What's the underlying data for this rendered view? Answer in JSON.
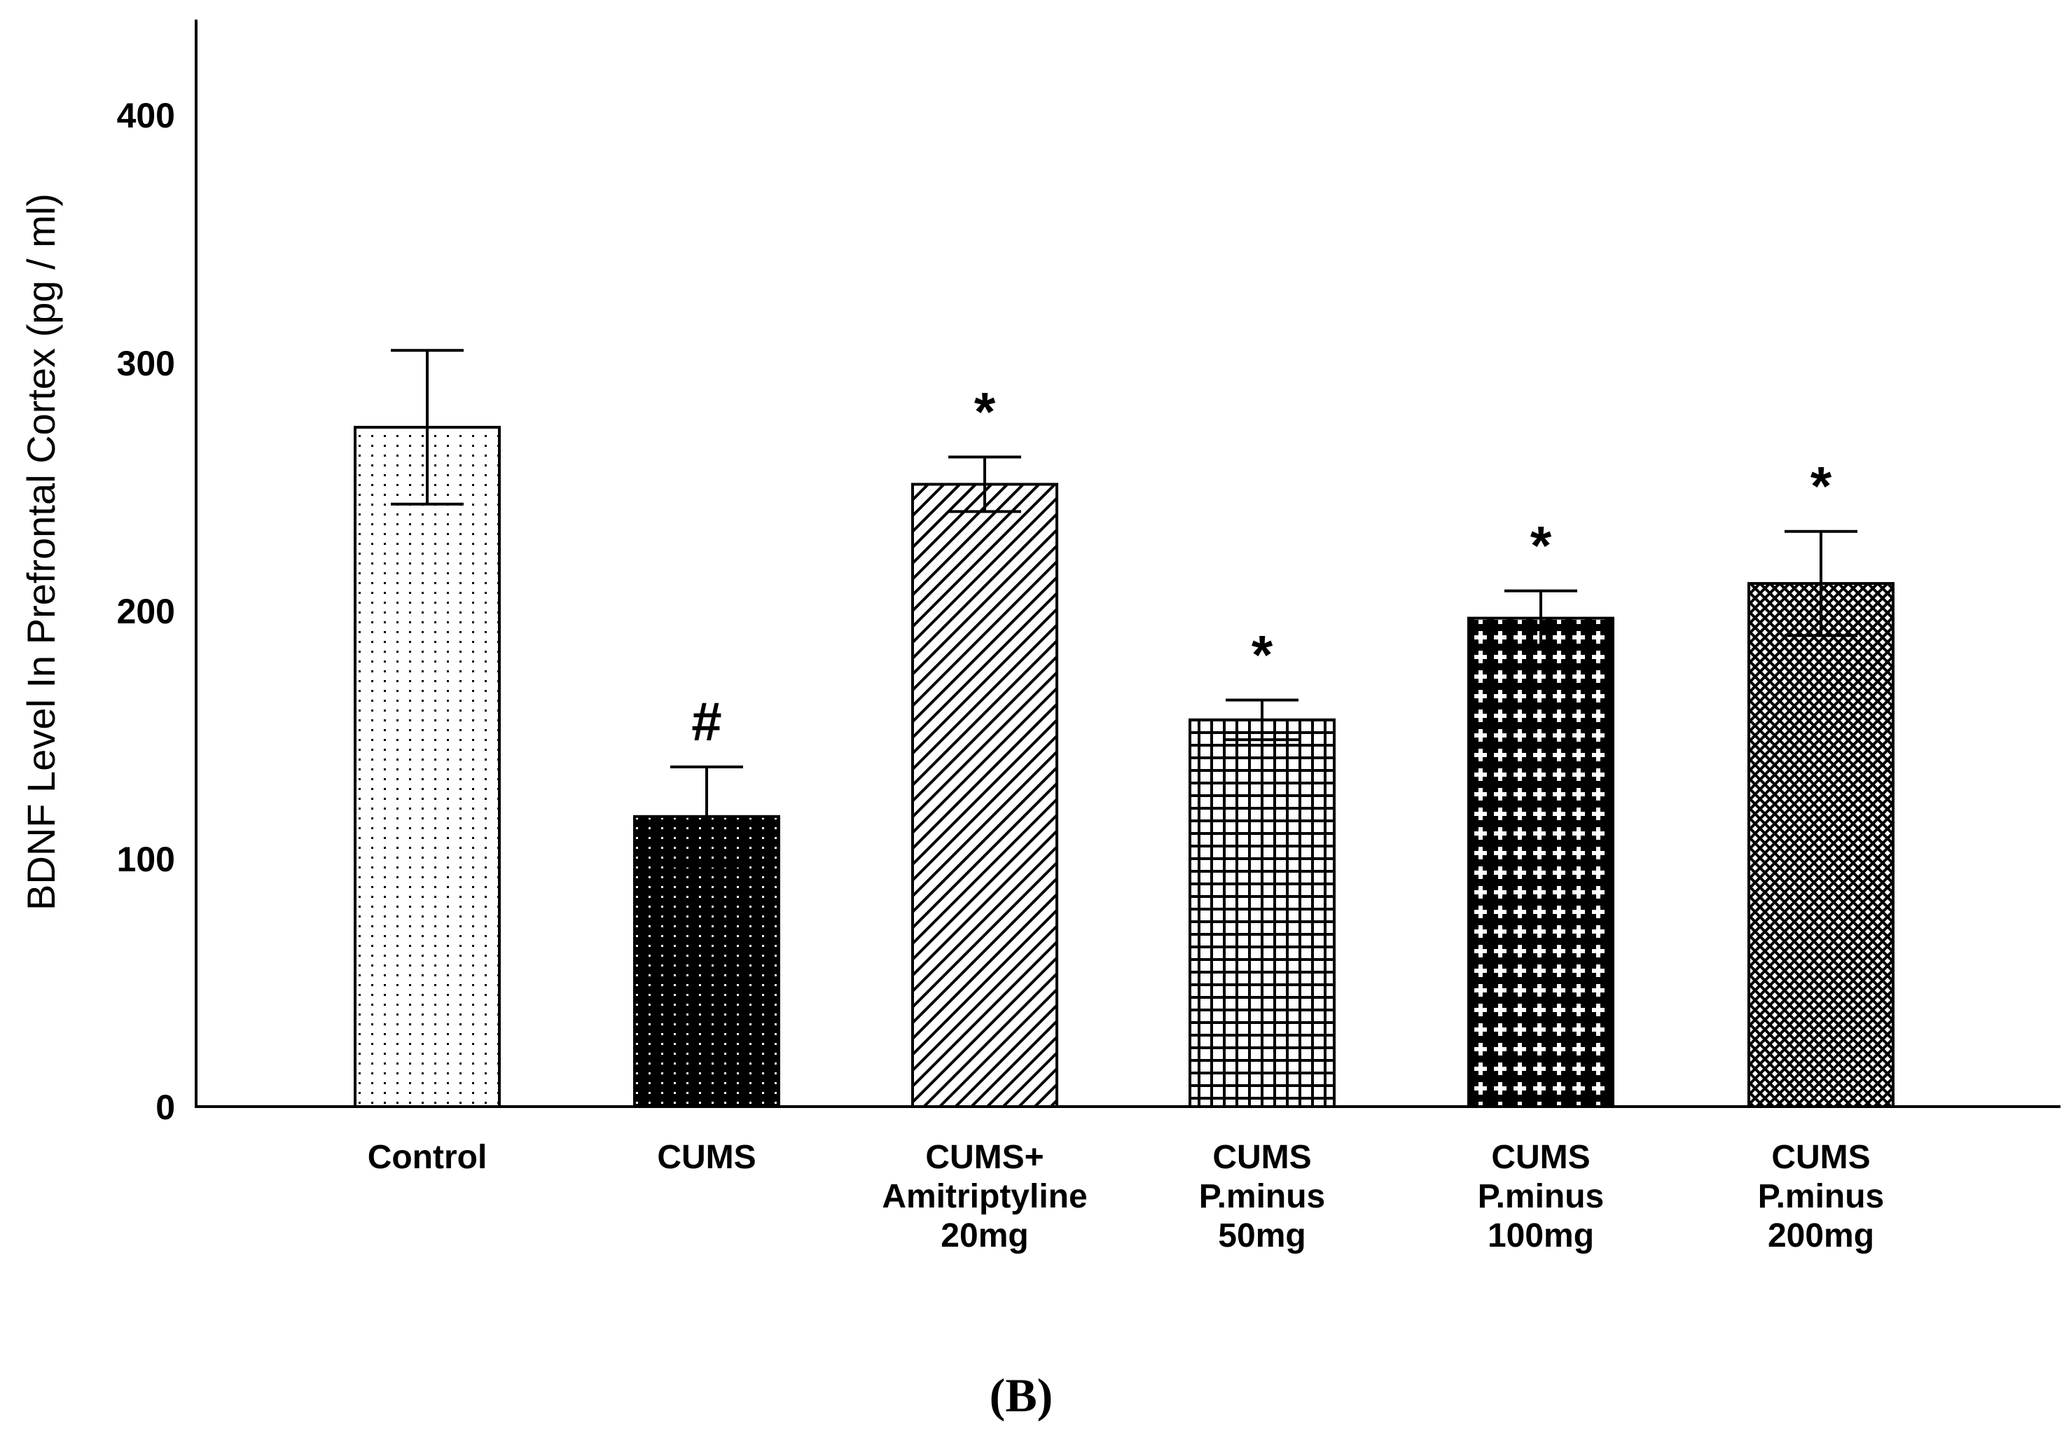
{
  "chart_data": {
    "type": "bar",
    "title": "",
    "ylabel": "BDNF Level In Prefrontal Cortex (pg / ml)",
    "xlabel": "",
    "ylim": [
      0,
      440
    ],
    "yticks": [
      0,
      100,
      200,
      300,
      400
    ],
    "grid": false,
    "categories": [
      {
        "lines": [
          "Control"
        ]
      },
      {
        "lines": [
          "CUMS"
        ]
      },
      {
        "lines": [
          "CUMS+",
          "Amitriptyline",
          "20mg"
        ]
      },
      {
        "lines": [
          "CUMS",
          "P.minus",
          "50mg"
        ]
      },
      {
        "lines": [
          "CUMS",
          "P.minus",
          "100mg"
        ]
      },
      {
        "lines": [
          "CUMS",
          "P.minus",
          "200mg"
        ]
      }
    ],
    "values": [
      274,
      117,
      251,
      156,
      197,
      211
    ],
    "errors": [
      31,
      20,
      11,
      8,
      11,
      21
    ],
    "significance": [
      "",
      "#",
      "*",
      "*",
      "*",
      "*"
    ],
    "patterns": [
      "dots",
      "dark-dots",
      "diagonal-lines",
      "grid",
      "crosses",
      "crosshatch"
    ],
    "panel_label": "(B)"
  }
}
